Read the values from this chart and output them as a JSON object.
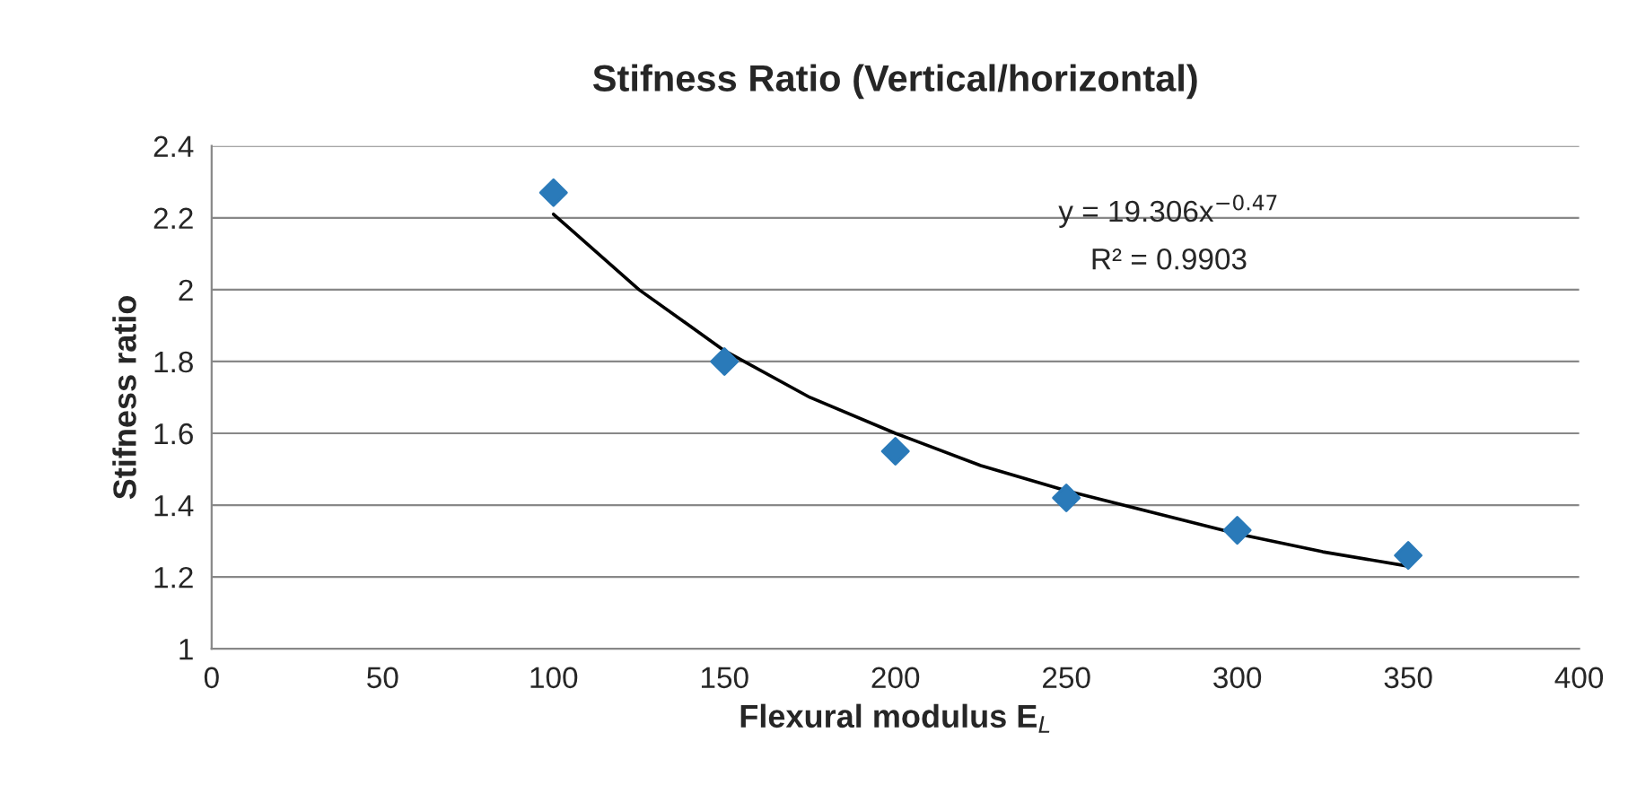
{
  "chart_data": {
    "type": "scatter",
    "title": "Stifness Ratio (Vertical/horizontal)",
    "xlabel": "Flexural modulus E$_{L}$",
    "ylabel": "Stifness ratio",
    "x": [
      100,
      150,
      200,
      250,
      300,
      350
    ],
    "series": [
      {
        "color": "#2a7ab9",
        "marker": "diamond",
        "values": [
          2.27,
          1.8,
          1.55,
          1.42,
          1.33,
          1.26
        ]
      },
      {
        "type": "line",
        "color": "#000000",
        "marker": "none",
        "line_style": "solid",
        "x": [
          100,
          125,
          150,
          175,
          200,
          225,
          250,
          275,
          300,
          325,
          350
        ],
        "values": [
          2.21,
          2.0,
          1.83,
          1.7,
          1.6,
          1.51,
          1.44,
          1.38,
          1.32,
          1.27,
          1.23
        ]
      }
    ],
    "annotations": [
      "y = 19.306x$^{−0.47}$",
      "R² = 0.9903"
    ],
    "xlim": [
      0,
      400
    ],
    "xticks": [
      0,
      50,
      100,
      150,
      200,
      250,
      300,
      350,
      400
    ],
    "ylim": [
      1,
      2.4
    ],
    "yticks": [
      1,
      1.2,
      1.4,
      1.6,
      1.8,
      2,
      2.2,
      2.4
    ],
    "grid": "y",
    "legend": false
  }
}
